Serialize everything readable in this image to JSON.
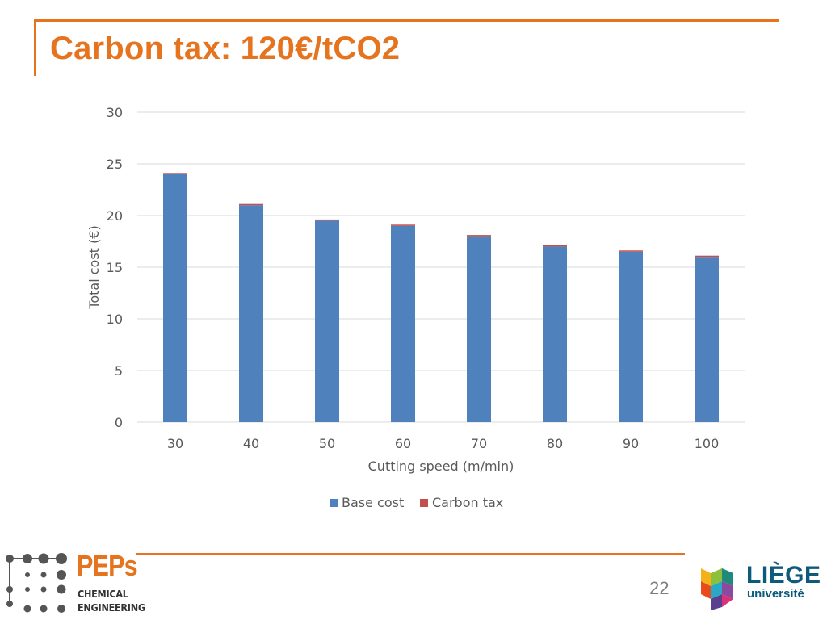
{
  "slide": {
    "title": "Carbon tax: 120€/tCO2",
    "page_number": "22"
  },
  "logos": {
    "peps_name": "PEPs",
    "peps_line1": "CHEMICAL",
    "peps_line2": "ENGINEERING",
    "liege_name": "LIÈGE",
    "liege_sub": "université"
  },
  "colors": {
    "accent": "#e6731e",
    "base_cost": "#4f81bd",
    "carbon_tax": "#c0504d",
    "grid": "#d9d9d9",
    "text": "#595959"
  },
  "chart_data": {
    "type": "bar",
    "stacked": true,
    "categories": [
      "30",
      "40",
      "50",
      "60",
      "70",
      "80",
      "90",
      "100"
    ],
    "series": [
      {
        "name": "Base cost",
        "values": [
          24.0,
          21.0,
          19.5,
          19.0,
          18.0,
          17.0,
          16.5,
          16.0
        ]
      },
      {
        "name": "Carbon tax",
        "values": [
          0.1,
          0.1,
          0.1,
          0.1,
          0.1,
          0.1,
          0.1,
          0.1
        ]
      }
    ],
    "title": "",
    "xlabel": "Cutting speed (m/min)",
    "ylabel": "Total cost (€)",
    "ylim": [
      0,
      30
    ],
    "yticks": [
      0,
      5,
      10,
      15,
      20,
      25,
      30
    ],
    "grid": true,
    "legend_position": "bottom"
  }
}
